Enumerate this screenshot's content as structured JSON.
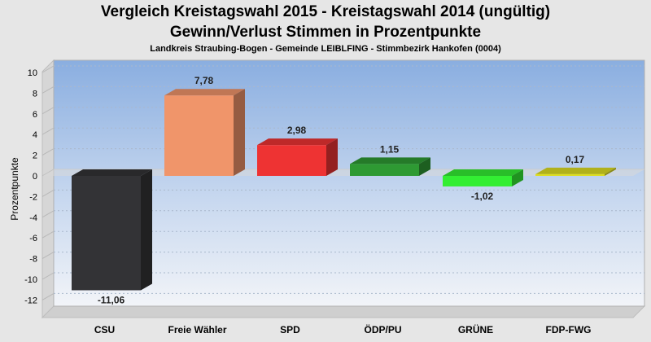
{
  "chart_data": {
    "type": "bar",
    "title": "Vergleich Kreistagswahl 2015 - Kreistagswahl 2014 (ungültig)",
    "subtitle": "Gewinn/Verlust Stimmen in Prozentpunkte",
    "subtitle2": "Landkreis Straubing-Bogen - Gemeinde LEIBLFING - Stimmbezirk Hankofen (0004)",
    "xlabel": "",
    "ylabel": "Prozentpunkte",
    "ylim": [
      -13,
      11
    ],
    "yticks": [
      10,
      8,
      6,
      4,
      2,
      0,
      -2,
      -4,
      -6,
      -8,
      -10,
      -12
    ],
    "grid": true,
    "legend": "none",
    "categories": [
      "CSU",
      "Freie Wähler",
      "SPD",
      "ÖDP/PU",
      "GRÜNE",
      "FDP-FWG"
    ],
    "values": [
      -11.06,
      7.78,
      2.98,
      1.15,
      -1.02,
      0.17
    ],
    "value_labels": [
      "-11,06",
      "7,78",
      "2,98",
      "1,15",
      "-1,02",
      "0,17"
    ],
    "colors": [
      "#333336",
      "#f0956a",
      "#ee3333",
      "#2e9a33",
      "#33ee33",
      "#dddd22"
    ]
  }
}
